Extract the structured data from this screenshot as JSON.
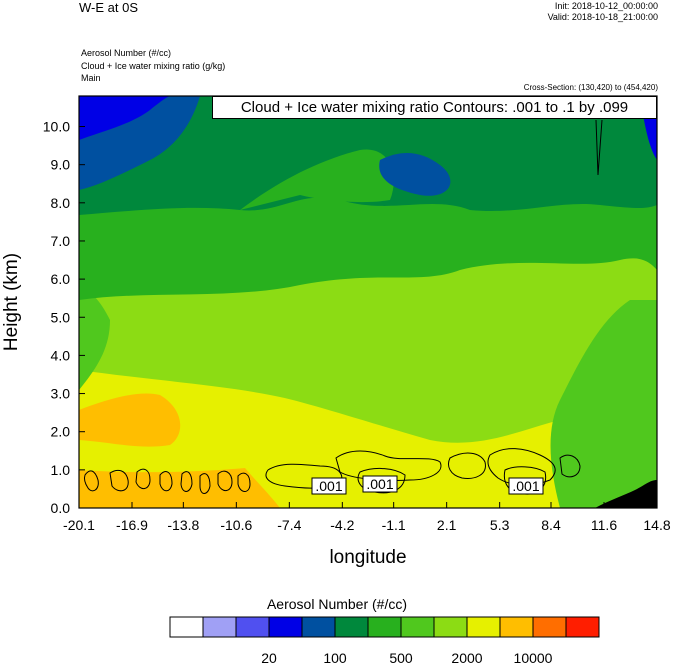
{
  "header": {
    "main_title": "W-E at 0S",
    "init": "Init: 2018-10-12_00:00:00",
    "valid": "Valid: 2018-10-18_21:00:00",
    "field_lines": [
      "Aerosol Number   (#/cc)",
      "Cloud + Ice water mixing ratio   (g/kg)",
      "Main"
    ],
    "cross_section": "Cross-Section: (130,420) to (454,420)"
  },
  "contour_info": "Cloud + Ice water mixing ratio Contours: .001 to .1 by .099",
  "contour_label_text": ".001",
  "colorbar": {
    "title": "Aerosol Number  (#/cc)",
    "colors": [
      "#ffffff",
      "#a0a0f5",
      "#5050f0",
      "#0000e6",
      "#0050a0",
      "#00883c",
      "#28b01e",
      "#50c81e",
      "#8cdc14",
      "#e6f000",
      "#ffbe00",
      "#ff6e00",
      "#ff1e00"
    ],
    "labels": [
      {
        "text": "20",
        "after_box": 2
      },
      {
        "text": "100",
        "after_box": 4
      },
      {
        "text": "500",
        "after_box": 6
      },
      {
        "text": "2000",
        "after_box": 8
      },
      {
        "text": "10000",
        "after_box": 10
      }
    ]
  },
  "chart_data": {
    "type": "heatmap",
    "title": "W-E at 0S",
    "xlabel": "longitude",
    "ylabel": "Height (km)",
    "xlim": [
      -20.1,
      14.8
    ],
    "ylim": [
      0.0,
      10.8
    ],
    "x_ticks": [
      "-20.1",
      "-16.9",
      "-13.8",
      "-10.6",
      "-7.4",
      "-4.2",
      "-1.1",
      "2.1",
      "5.3",
      "8.4",
      "11.6",
      "14.8"
    ],
    "y_ticks": [
      "0.0",
      "1.0",
      "2.0",
      "3.0",
      "4.0",
      "5.0",
      "6.0",
      "7.0",
      "8.0",
      "9.0",
      "10.0"
    ],
    "levels": [
      20,
      100,
      500,
      2000,
      10000
    ],
    "filled_regions_aerosol_level_index": [
      {
        "level": 9,
        "polygon_x_y": [
          [
            -20.1,
            0
          ],
          [
            -9.5,
            0
          ],
          [
            -9.4,
            1.1
          ],
          [
            -20.1,
            1.0
          ]
        ]
      },
      {
        "level": 9,
        "polygon_x_y": [
          [
            -20.1,
            1.0
          ],
          [
            -14,
            1.4
          ],
          [
            -12.5,
            2.2
          ],
          [
            -13.8,
            3.0
          ],
          [
            -17,
            3.3
          ],
          [
            -20.1,
            2.7
          ]
        ]
      },
      {
        "level": 7,
        "polygon_x_y": [
          [
            -20.1,
            5.7
          ],
          [
            -15,
            6.2
          ],
          [
            -10,
            6.4
          ],
          [
            -4,
            6.2
          ],
          [
            0,
            5.9
          ],
          [
            3,
            6.6
          ],
          [
            7,
            6.8
          ],
          [
            11,
            6.5
          ],
          [
            14.8,
            6.2
          ],
          [
            14.8,
            7.8
          ],
          [
            11,
            8.1
          ],
          [
            7,
            8.2
          ],
          [
            3,
            7.9
          ],
          [
            -2,
            8.0
          ],
          [
            -6,
            8.2
          ],
          [
            -10,
            8.0
          ],
          [
            -15,
            7.9
          ],
          [
            -20.1,
            7.5
          ]
        ]
      },
      {
        "level": 6,
        "polygon_x_y": [
          [
            -20.1,
            7.5
          ],
          [
            -15,
            7.9
          ],
          [
            -10,
            8.0
          ],
          [
            -6,
            8.2
          ],
          [
            -2,
            8.0
          ],
          [
            3,
            7.9
          ],
          [
            7,
            8.2
          ],
          [
            11,
            8.1
          ],
          [
            14.8,
            7.8
          ],
          [
            14.8,
            10.8
          ],
          [
            -20.1,
            10.8
          ]
        ]
      },
      {
        "level": 4,
        "polygon_x_y": [
          [
            -20.1,
            8.6
          ],
          [
            -18,
            9.0
          ],
          [
            -15,
            9.5
          ],
          [
            -12,
            9.8
          ],
          [
            -11,
            10.8
          ],
          [
            -20.1,
            10.8
          ]
        ]
      },
      {
        "level": 4,
        "polygon_x_y": [
          [
            -2.0,
            9.3
          ],
          [
            0.5,
            9.0
          ],
          [
            2.5,
            8.4
          ],
          [
            4.5,
            8.6
          ],
          [
            5.5,
            9.4
          ],
          [
            4.0,
            10.2
          ],
          [
            1.0,
            10.0
          ]
        ]
      },
      {
        "level": 3,
        "polygon_x_y": [
          [
            -20.1,
            9.6
          ],
          [
            -17.5,
            10.0
          ],
          [
            -15.5,
            10.4
          ],
          [
            -14,
            10.8
          ],
          [
            -20.1,
            10.8
          ]
        ]
      },
      {
        "level": 0,
        "polygon_x_y": [
          [
            10.5,
            0
          ],
          [
            13.5,
            0.4
          ],
          [
            14.8,
            0.7
          ],
          [
            14.8,
            0
          ]
        ]
      }
    ]
  }
}
